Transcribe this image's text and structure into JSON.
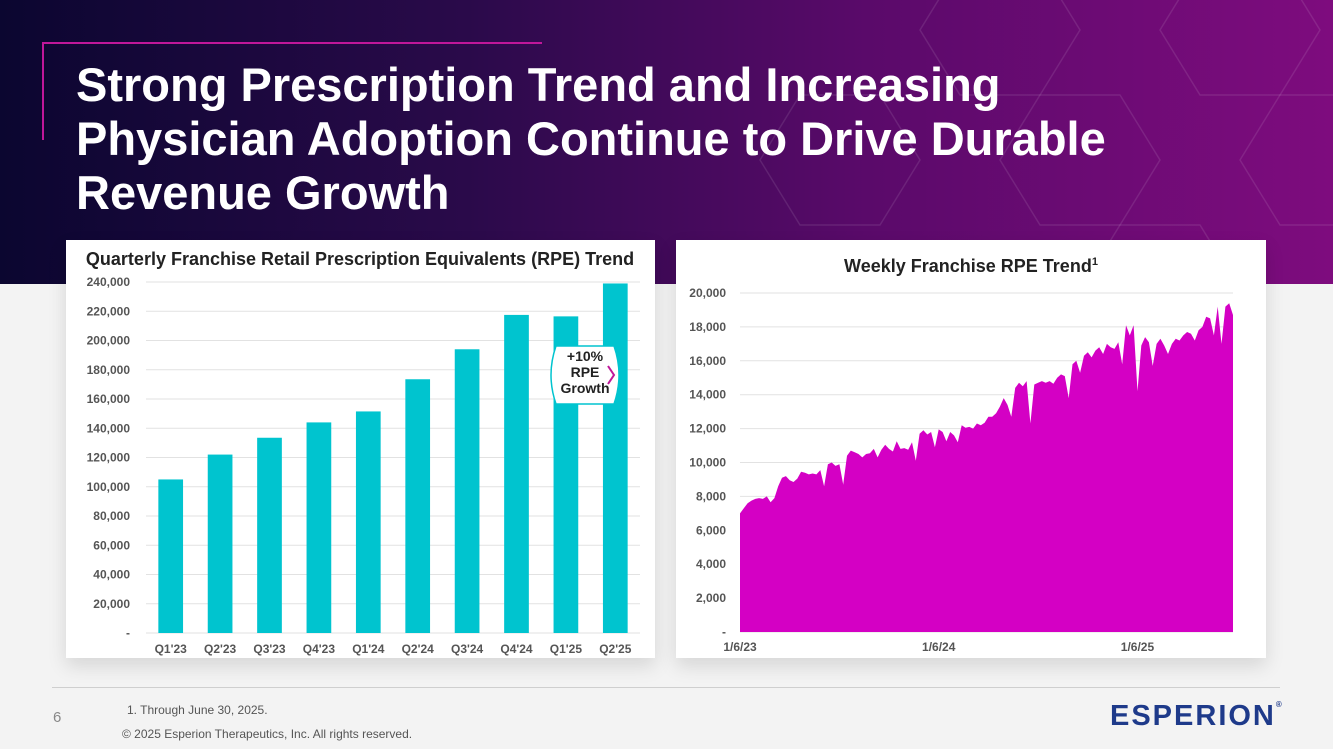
{
  "slide": {
    "title": "Strong Prescription Trend and Increasing Physician Adoption Continue to Drive Durable Revenue Growth",
    "page_number": "6",
    "footnote": "1. Through June 30, 2025.",
    "copyright": "© 2025 Esperion Therapeutics, Inc. All rights reserved.",
    "logo_text": "ESPERION",
    "logo_mark": "®"
  },
  "colors": {
    "bar": "#00c4cf",
    "area": "#d400c4",
    "accent": "#c0179a",
    "logo": "#1e3a8a"
  },
  "chart_data": [
    {
      "type": "bar",
      "title": "Quarterly Franchise Retail Prescription Equivalents (RPE) Trend",
      "categories": [
        "Q1'23",
        "Q2'23",
        "Q3'23",
        "Q4'23",
        "Q1'24",
        "Q2'24",
        "Q3'24",
        "Q4'24",
        "Q1'25",
        "Q2'25"
      ],
      "values": [
        105000,
        122000,
        133500,
        144000,
        151500,
        173500,
        194000,
        217500,
        216500,
        239000
      ],
      "ylim": [
        0,
        240000
      ],
      "yticks": [
        0,
        20000,
        40000,
        60000,
        80000,
        100000,
        120000,
        140000,
        160000,
        180000,
        200000,
        220000,
        240000
      ],
      "ytick_labels": [
        "-",
        "20,000",
        "40,000",
        "60,000",
        "80,000",
        "100,000",
        "120,000",
        "140,000",
        "160,000",
        "180,000",
        "200,000",
        "220,000",
        "240,000"
      ],
      "grid": true,
      "annotation": {
        "lines": [
          "+10%",
          "RPE",
          "Growth"
        ]
      }
    },
    {
      "type": "area",
      "title": "Weekly Franchise RPE Trend",
      "title_superscript": "1",
      "x_start": "1/6/23",
      "x_tick_labels": [
        "1/6/23",
        "1/6/24",
        "1/6/25"
      ],
      "x_tick_week_index": [
        0,
        52,
        104
      ],
      "weeks": 130,
      "ylim": [
        0,
        20000
      ],
      "yticks": [
        0,
        2000,
        4000,
        6000,
        8000,
        10000,
        12000,
        14000,
        16000,
        18000,
        20000
      ],
      "ytick_labels": [
        "-",
        "2,000",
        "4,000",
        "6,000",
        "8,000",
        "10,000",
        "12,000",
        "14,000",
        "16,000",
        "18,000",
        "20,000"
      ],
      "grid": true,
      "values": [
        7000,
        7300,
        7600,
        7750,
        7850,
        7900,
        7850,
        8000,
        7650,
        7900,
        8600,
        9100,
        9200,
        8950,
        8850,
        9050,
        9450,
        9400,
        9300,
        9350,
        9300,
        9550,
        8600,
        9900,
        10000,
        9800,
        9900,
        8700,
        10400,
        10700,
        10600,
        10500,
        10300,
        10500,
        10550,
        10800,
        10300,
        10750,
        11050,
        10800,
        10650,
        11250,
        10800,
        10850,
        10750,
        11200,
        10100,
        11700,
        11900,
        11650,
        11800,
        10900,
        11950,
        11800,
        11250,
        11800,
        11600,
        11200,
        12200,
        12050,
        12100,
        12000,
        12300,
        12200,
        12350,
        12700,
        12700,
        12900,
        13300,
        13800,
        13400,
        12700,
        14400,
        14700,
        14500,
        14800,
        12300,
        14600,
        14700,
        14800,
        14700,
        14800,
        14650,
        15000,
        15200,
        15100,
        13800,
        15800,
        16000,
        15300,
        16300,
        16500,
        16200,
        16600,
        16800,
        16400,
        17000,
        16800,
        16700,
        17100,
        15800,
        18100,
        17500,
        18100,
        14200,
        16900,
        17400,
        17100,
        15700,
        17000,
        17300,
        16900,
        16400,
        17000,
        17300,
        17200,
        17500,
        17700,
        17600,
        17200,
        17800,
        18000,
        18600,
        18500,
        17500,
        19200,
        17000,
        19200,
        19400,
        18700
      ]
    }
  ]
}
